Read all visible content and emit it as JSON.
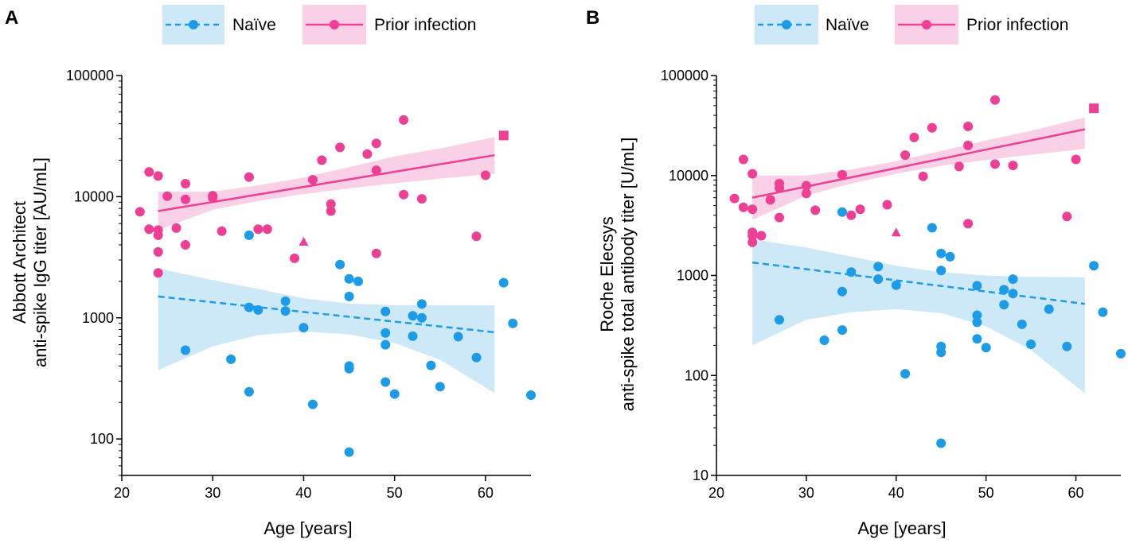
{
  "colors": {
    "naive": "#1C9BE8",
    "naive_band": "#CDE9F8",
    "prior": "#EE3F95",
    "prior_band": "#FAD0E6",
    "axis": "#000000"
  },
  "legend": {
    "naive_label": "Naïve",
    "prior_label": "Prior infection"
  },
  "chart_data": [
    {
      "panel": "A",
      "type": "scatter",
      "xlabel": "Age [years]",
      "ylabel_lines": [
        "Abbott Architect",
        "anti-spike IgG titer [AU/mL]"
      ],
      "yscale": "log",
      "xlim": [
        20,
        65
      ],
      "ylim": [
        50,
        100000
      ],
      "xticks": [
        20,
        30,
        40,
        50,
        60
      ],
      "xtick_labels": [
        "20",
        "30",
        "40",
        "50",
        "60"
      ],
      "yticks": [
        100,
        1000,
        10000,
        100000
      ],
      "ytick_labels": [
        "100",
        "1000",
        "10000",
        "100000"
      ],
      "series": [
        {
          "name": "Naïve",
          "points": [
            [
              27,
              540
            ],
            [
              32,
              455
            ],
            [
              34,
              4800
            ],
            [
              34,
              1220
            ],
            [
              34,
              245
            ],
            [
              35,
              1160
            ],
            [
              38,
              1370
            ],
            [
              38,
              1140
            ],
            [
              40,
              830
            ],
            [
              41,
              193
            ],
            [
              44,
              2750
            ],
            [
              45,
              2100
            ],
            [
              45,
              1500
            ],
            [
              45,
              400
            ],
            [
              45,
              380
            ],
            [
              45,
              78
            ],
            [
              46,
              2000
            ],
            [
              49,
              1130
            ],
            [
              49,
              750
            ],
            [
              49,
              600
            ],
            [
              49,
              295
            ],
            [
              50,
              235
            ],
            [
              52,
              1040
            ],
            [
              52,
              705
            ],
            [
              53,
              1300
            ],
            [
              53,
              1000
            ],
            [
              54,
              405
            ],
            [
              55,
              270
            ],
            [
              57,
              700
            ],
            [
              59,
              470
            ],
            [
              62,
              1950
            ],
            [
              63,
              900
            ],
            [
              65,
              230
            ]
          ],
          "fit": {
            "x": [
              24,
              61
            ],
            "y": [
              1500,
              760
            ]
          },
          "band": {
            "x": [
              24,
              30,
              35,
              40,
              45,
              50,
              55,
              61
            ],
            "lower": [
              370,
              580,
              720,
              770,
              730,
              620,
              450,
              240
            ],
            "upper": [
              2550,
              2050,
              1730,
              1450,
              1310,
              1270,
              1270,
              1270
            ]
          }
        },
        {
          "name": "Prior infection",
          "points": [
            [
              22,
              7500
            ],
            [
              23,
              16000
            ],
            [
              23,
              5400
            ],
            [
              24,
              14800
            ],
            [
              24,
              5300
            ],
            [
              24,
              4800
            ],
            [
              24,
              3500
            ],
            [
              24,
              2350
            ],
            [
              25,
              10100
            ],
            [
              26,
              5500
            ],
            [
              27,
              12800
            ],
            [
              27,
              9500
            ],
            [
              27,
              4000
            ],
            [
              30,
              10200
            ],
            [
              30,
              9800
            ],
            [
              31,
              5200
            ],
            [
              34,
              14500
            ],
            [
              35,
              5400
            ],
            [
              36,
              5400
            ],
            [
              39,
              3100
            ],
            [
              41,
              13800
            ],
            [
              42,
              20000
            ],
            [
              43,
              8700
            ],
            [
              43,
              7600
            ],
            [
              44,
              25500
            ],
            [
              47,
              22500
            ],
            [
              48,
              27500
            ],
            [
              48,
              16500
            ],
            [
              48,
              3400
            ],
            [
              51,
              43000
            ],
            [
              51,
              10400
            ],
            [
              53,
              9600
            ],
            [
              59,
              4700
            ],
            [
              60,
              15000
            ]
          ],
          "fit": {
            "x": [
              24,
              61
            ],
            "y": [
              7600,
              22000
            ]
          },
          "band": {
            "x": [
              24,
              30,
              35,
              40,
              45,
              50,
              55,
              61
            ],
            "lower": [
              5300,
              7800,
              9200,
              10500,
              11700,
              12900,
              14100,
              15500
            ],
            "upper": [
              11000,
              11000,
              12400,
              14400,
              17500,
              21500,
              25000,
              31000
            ]
          }
        }
      ],
      "annotations": [
        {
          "shape": "triangle",
          "series": "Prior infection",
          "x": 40,
          "y": 4250
        },
        {
          "shape": "square",
          "series": "Prior infection",
          "x": 62,
          "y": 32000
        }
      ]
    },
    {
      "panel": "B",
      "type": "scatter",
      "xlabel": "Age [years]",
      "ylabel_lines": [
        "Roche Elecsys",
        "anti-spike total antibody titer [U/mL]"
      ],
      "yscale": "log",
      "xlim": [
        20,
        65
      ],
      "ylim": [
        10,
        100000
      ],
      "xticks": [
        20,
        30,
        40,
        50,
        60
      ],
      "xtick_labels": [
        "20",
        "30",
        "40",
        "50",
        "60"
      ],
      "yticks": [
        10,
        100,
        1000,
        10000,
        100000
      ],
      "ytick_labels": [
        "10",
        "100",
        "1000",
        "10000",
        "100000"
      ],
      "series": [
        {
          "name": "Naïve",
          "points": [
            [
              27,
              360
            ],
            [
              32,
              225
            ],
            [
              34,
              4300
            ],
            [
              34,
              690
            ],
            [
              34,
              285
            ],
            [
              35,
              1080
            ],
            [
              38,
              1230
            ],
            [
              38,
              920
            ],
            [
              40,
              800
            ],
            [
              41,
              104
            ],
            [
              44,
              3000
            ],
            [
              45,
              1660
            ],
            [
              45,
              1120
            ],
            [
              45,
              195
            ],
            [
              45,
              170
            ],
            [
              45,
              21
            ],
            [
              46,
              1540
            ],
            [
              49,
              790
            ],
            [
              49,
              400
            ],
            [
              49,
              340
            ],
            [
              49,
              232
            ],
            [
              50,
              190
            ],
            [
              52,
              720
            ],
            [
              52,
              510
            ],
            [
              53,
              920
            ],
            [
              53,
              660
            ],
            [
              54,
              325
            ],
            [
              55,
              205
            ],
            [
              57,
              460
            ],
            [
              59,
              195
            ],
            [
              62,
              1250
            ],
            [
              63,
              430
            ],
            [
              65,
              165
            ]
          ],
          "fit": {
            "x": [
              24,
              61
            ],
            "y": [
              1350,
              520
            ]
          },
          "band": {
            "x": [
              24,
              30,
              35,
              40,
              45,
              50,
              55,
              61
            ],
            "lower": [
              200,
              360,
              430,
              460,
              420,
              310,
              180,
              66
            ],
            "upper": [
              2300,
              1900,
              1550,
              1250,
              1080,
              1000,
              970,
              960
            ]
          }
        },
        {
          "name": "Prior infection",
          "points": [
            [
              22,
              5900
            ],
            [
              23,
              14500
            ],
            [
              23,
              4800
            ],
            [
              24,
              10400
            ],
            [
              24,
              4600
            ],
            [
              24,
              2700
            ],
            [
              24,
              2500
            ],
            [
              24,
              2150
            ],
            [
              25,
              2500
            ],
            [
              26,
              5700
            ],
            [
              27,
              8300
            ],
            [
              27,
              7500
            ],
            [
              27,
              3800
            ],
            [
              30,
              7900
            ],
            [
              30,
              6600
            ],
            [
              31,
              4500
            ],
            [
              34,
              10200
            ],
            [
              35,
              4000
            ],
            [
              36,
              4600
            ],
            [
              39,
              5100
            ],
            [
              41,
              16000
            ],
            [
              42,
              24000
            ],
            [
              43,
              9800
            ],
            [
              44,
              30000
            ],
            [
              47,
              12300
            ],
            [
              48,
              31000
            ],
            [
              48,
              20000
            ],
            [
              48,
              3300
            ],
            [
              51,
              57000
            ],
            [
              51,
              13000
            ],
            [
              53,
              12600
            ],
            [
              59,
              3900
            ],
            [
              60,
              14500
            ]
          ],
          "fit": {
            "x": [
              24,
              61
            ],
            "y": [
              6000,
              29000
            ]
          },
          "band": {
            "x": [
              24,
              30,
              35,
              40,
              45,
              50,
              55,
              61
            ],
            "lower": [
              3600,
              6300,
              8300,
              10400,
              12500,
              14300,
              16100,
              18500
            ],
            "upper": [
              10000,
              10000,
              11500,
              13900,
              17600,
              22500,
              28000,
              38000
            ]
          }
        }
      ],
      "annotations": [
        {
          "shape": "triangle",
          "series": "Prior infection",
          "x": 40,
          "y": 2700
        },
        {
          "shape": "square",
          "series": "Prior infection",
          "x": 62,
          "y": 47000
        }
      ]
    }
  ]
}
